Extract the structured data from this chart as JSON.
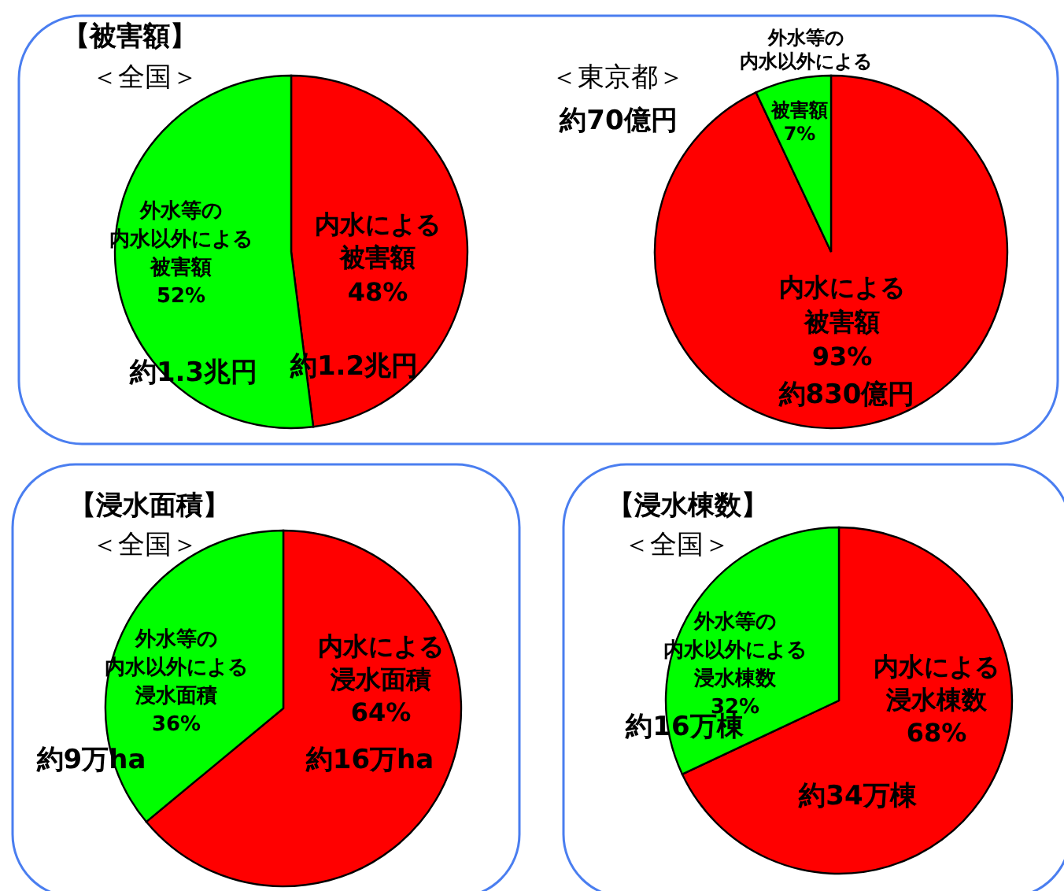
{
  "chart_data": [
    {
      "type": "pie",
      "title": "【被害額】",
      "subtitle": "＜全国＞",
      "categories": [
        "内水による被害額",
        "外水等の内水以外による被害額"
      ],
      "values": [
        48,
        52
      ],
      "value_labels": [
        "48%",
        "52%"
      ],
      "colors": [
        "#ff0000",
        "#00ff00"
      ],
      "annotations": [
        "約1.2兆円",
        "約1.3兆円"
      ]
    },
    {
      "type": "pie",
      "subtitle": "＜東京都＞",
      "categories": [
        "内水による被害額",
        "外水等の内水以外による被害額"
      ],
      "values": [
        93,
        7
      ],
      "value_labels": [
        "93%",
        "7%"
      ],
      "colors": [
        "#ff0000",
        "#00ff00"
      ],
      "annotations": [
        "約830億円",
        "約70億円"
      ]
    },
    {
      "type": "pie",
      "title": "【浸水面積】",
      "subtitle": "＜全国＞",
      "categories": [
        "内水による浸水面積",
        "外水等の内水以外による浸水面積"
      ],
      "values": [
        64,
        36
      ],
      "value_labels": [
        "64%",
        "36%"
      ],
      "colors": [
        "#ff0000",
        "#00ff00"
      ],
      "annotations": [
        "約16万ha",
        "約9万ha"
      ]
    },
    {
      "type": "pie",
      "title": "【浸水棟数】",
      "subtitle": "＜全国＞",
      "categories": [
        "内水による浸水棟数",
        "外水等の内水以外による浸水棟数"
      ],
      "values": [
        68,
        32
      ],
      "value_labels": [
        "68%",
        "32%"
      ],
      "colors": [
        "#ff0000",
        "#00ff00"
      ],
      "annotations": [
        "約34万棟",
        "約16万棟"
      ]
    }
  ]
}
